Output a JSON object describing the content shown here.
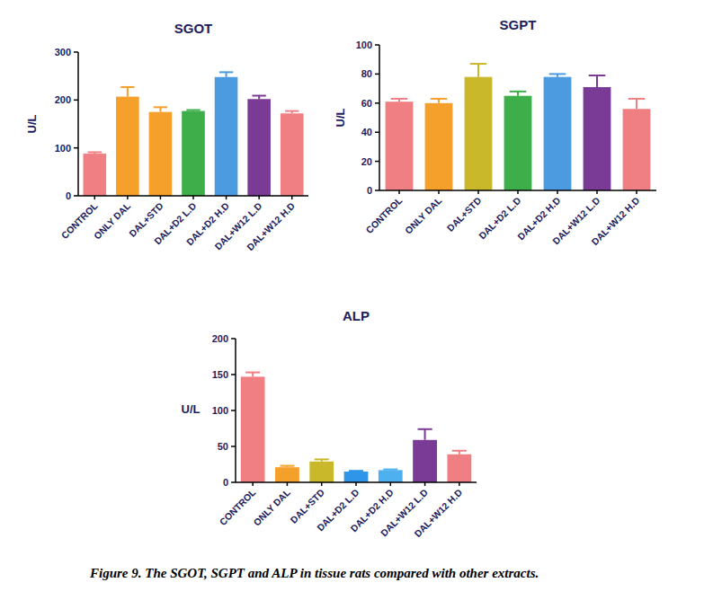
{
  "chart_data": [
    {
      "type": "bar",
      "title": "SGOT",
      "y_label": "U/L",
      "categories": [
        "CONTROL",
        "ONLY DAL",
        "DAL+STD",
        "DAL+D2 L.D",
        "DAL+D2 H.D",
        "DAL+W12 L.D",
        "DAL+W12 H.D"
      ],
      "values": [
        88,
        207,
        175,
        177,
        248,
        202,
        172
      ],
      "errors": [
        3,
        20,
        10,
        2,
        10,
        7,
        5
      ],
      "colors": [
        "#f07f84",
        "#f6a02c",
        "#f6a02c",
        "#3dae4a",
        "#4c9be0",
        "#7a3b97",
        "#f07f84"
      ],
      "ylim": [
        0,
        300
      ],
      "yticks": [
        0,
        100,
        200,
        300
      ],
      "grid": false
    },
    {
      "type": "bar",
      "title": "SGPT",
      "y_label": "U/L",
      "categories": [
        "CONTROL",
        "ONLY DAL",
        "DAL+STD",
        "DAL+D2 L.D",
        "DAL+D2 H.D",
        "DAL+W12 L.D",
        "DAL+W12 H.D"
      ],
      "values": [
        61,
        60,
        78,
        65,
        78,
        71,
        56
      ],
      "errors": [
        2,
        3,
        9,
        3,
        2,
        8,
        7
      ],
      "colors": [
        "#f07f84",
        "#f6a02c",
        "#c9b82a",
        "#3dae4a",
        "#4c9be0",
        "#7a3b97",
        "#f07f84"
      ],
      "ylim": [
        0,
        100
      ],
      "yticks": [
        0,
        20,
        40,
        60,
        80,
        100
      ],
      "grid": false
    },
    {
      "type": "bar",
      "title": "ALP",
      "y_label": "U/L",
      "categories": [
        "CONTROL",
        "ONLY DAL",
        "DAL+STD",
        "DAL+D2 L.D",
        "DAL+D2 H.D",
        "DAL+W12 L.D",
        "DAL+W12 H.D"
      ],
      "values": [
        147,
        21,
        29,
        15,
        17,
        59,
        39
      ],
      "errors": [
        6,
        2,
        3,
        1,
        1,
        15,
        5
      ],
      "colors": [
        "#f07f84",
        "#f6a02c",
        "#c9b82a",
        "#2f95e8",
        "#4fb0f0",
        "#7a3b97",
        "#f07f84"
      ],
      "ylim": [
        0,
        200
      ],
      "yticks": [
        0,
        50,
        100,
        150,
        200
      ],
      "grid": false
    }
  ],
  "caption": "Figure 9. The SGOT, SGPT and ALP in tissue rats compared with other extracts."
}
